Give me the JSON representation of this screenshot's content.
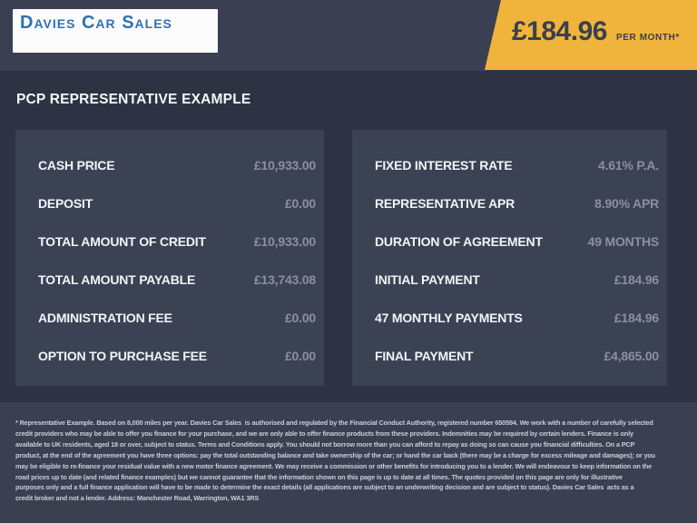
{
  "header": {
    "logo_text": "Davies Car Sales",
    "price": "£184.96",
    "price_suffix": "PER MONTH*"
  },
  "page_title": "PCP REPRESENTATIVE EXAMPLE",
  "panels": {
    "left": {
      "rows": [
        {
          "label": "CASH PRICE",
          "value": "£10,933.00"
        },
        {
          "label": "DEPOSIT",
          "value": "£0.00"
        },
        {
          "label": "TOTAL AMOUNT OF CREDIT",
          "value": "£10,933.00"
        },
        {
          "label": "TOTAL AMOUNT PAYABLE",
          "value": "£13,743.08"
        },
        {
          "label": "ADMINISTRATION FEE",
          "value": "£0.00"
        },
        {
          "label": "OPTION TO PURCHASE FEE",
          "value": "£0.00"
        }
      ]
    },
    "right": {
      "rows": [
        {
          "label": "FIXED INTEREST RATE",
          "value": "4.61% P.A."
        },
        {
          "label": "REPRESENTATIVE APR",
          "value": "8.90% APR"
        },
        {
          "label": "DURATION OF AGREEMENT",
          "value": "49 MONTHS"
        },
        {
          "label": "INITIAL PAYMENT",
          "value": "£184.96"
        },
        {
          "label": "47 MONTHLY PAYMENTS",
          "value": "£184.96"
        },
        {
          "label": "FINAL PAYMENT",
          "value": "£4,865.00"
        }
      ]
    }
  },
  "footer": {
    "lines": [
      "* Representative Example. Based on 8,000 miles per year. Davies Car Sales  is authorised and regulated by the Financial Conduct Authority, registered number 650594. We work with a number of carefully selected",
      "credit providers who may be able to offer you finance for your purchase, and we are only able to offer finance products from these providers. Indemnities may be required by certain lenders. Finance is only",
      "available to UK residents, aged 18 or over, subject to status. Terms and Conditions apply. You should not borrow more than you can afford to repay as doing so can cause you financial difficulties. On a PCP",
      "product, at the end of the agreement you have three options: pay the total outstanding balance and take ownership of the car; or hand the car back (there may be a charge for excess mileage and damages); or you",
      "may be eligible to re-finance your residual value with a new motor finance agreement. We may receive a commission or other benefits for introducing you to a lender. We will endeavour to keep information on the",
      "road prices up to date (and related finance examples) but we cannot guarantee that the information shown on this page is up to date at all times. The quotes provided on this page are only for illustrative",
      "purposes only and a full finance application will have to be made to determine the exact details (all applications are subject to an underwriting decision and are subject to status). Davies Car Sales  acts as a",
      "credit broker and not a lender. Address: Manchester Road, Warrington, WA1 3RS"
    ]
  },
  "colors": {
    "background": "#2D3342",
    "top_strip": "#3A4052",
    "panel": "#3B4254",
    "footer": "#3A4050",
    "accent_yellow": "#F0B43C",
    "banner_text": "#39404F",
    "logo_blue": "#2E72B5",
    "label_text": "#F2F4F7",
    "value_text": "#8A90A1",
    "footer_text": "#C9CDD8"
  }
}
